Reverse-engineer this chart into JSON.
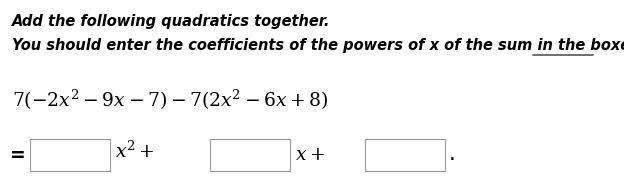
{
  "bg_color": "#ffffff",
  "line1": "Add the following quadratics together.",
  "line2_pre": "You should enter the coefficients of the powers of ",
  "line2_x": "x",
  "line2_post": " of the sum in the boxes.",
  "underline_word": "boxes",
  "expr_line": "7 (−2x² − 9x − 7) − 7 (2x² − 6x + 8)",
  "box_label1": "x² +",
  "box_label2": "x +",
  "box_label3": ".",
  "font_size_title": 10.5,
  "font_size_expr": 13.5,
  "font_size_bottom": 13.5
}
